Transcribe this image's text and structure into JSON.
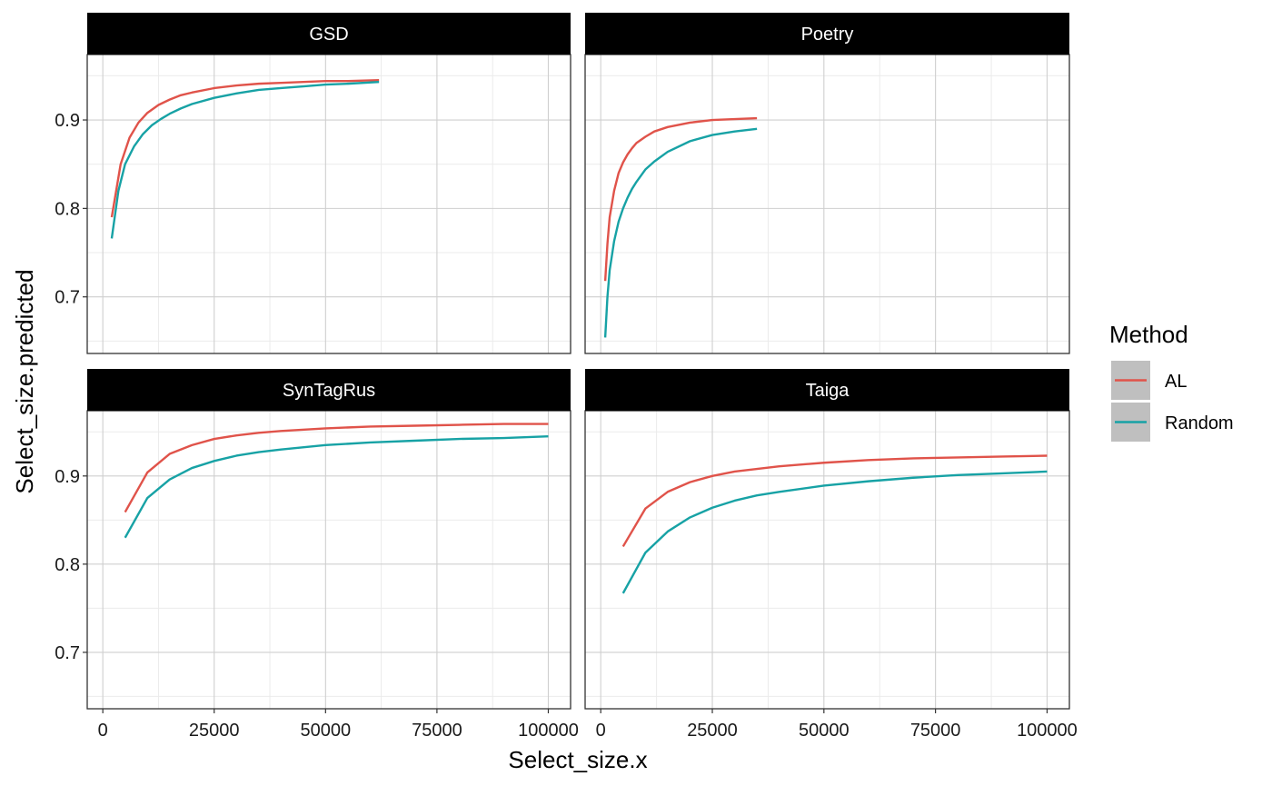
{
  "chart_data": {
    "type": "line",
    "xlabel": "Select_size.x",
    "ylabel": "Select_size.predicted",
    "xlim": [
      -3500,
      105000
    ],
    "ylim": [
      0.636,
      0.974
    ],
    "x_ticks": [
      0,
      25000,
      50000,
      75000,
      100000
    ],
    "x_tick_labels": [
      "0",
      "25000",
      "50000",
      "75000",
      "100000"
    ],
    "y_ticks": [
      0.7,
      0.8,
      0.9
    ],
    "y_tick_labels": [
      "0.7",
      "0.8",
      "0.9"
    ],
    "grid": true,
    "legend_placement": "right",
    "legend": {
      "title": "Method",
      "entries": [
        {
          "label": "AL",
          "color": "#E0534A"
        },
        {
          "label": "Random",
          "color": "#17A2A5"
        }
      ]
    },
    "facets": [
      {
        "title": "GSD",
        "series": [
          {
            "name": "AL",
            "x": [
              2000,
              4000,
              6000,
              8000,
              10000,
              12500,
              15000,
              17500,
              20000,
              25000,
              30000,
              35000,
              40000,
              45000,
              50000,
              55000,
              62000
            ],
            "y": [
              0.79,
              0.85,
              0.88,
              0.897,
              0.908,
              0.917,
              0.923,
              0.928,
              0.931,
              0.936,
              0.939,
              0.941,
              0.942,
              0.943,
              0.944,
              0.944,
              0.945
            ]
          },
          {
            "name": "Random",
            "x": [
              2000,
              3500,
              5000,
              7000,
              9000,
              11000,
              13000,
              15000,
              17500,
              20000,
              25000,
              30000,
              35000,
              40000,
              45000,
              50000,
              55000,
              62000
            ],
            "y": [
              0.766,
              0.82,
              0.85,
              0.87,
              0.884,
              0.894,
              0.901,
              0.907,
              0.913,
              0.918,
              0.925,
              0.93,
              0.934,
              0.936,
              0.938,
              0.94,
              0.941,
              0.943
            ]
          }
        ]
      },
      {
        "title": "Poetry",
        "series": [
          {
            "name": "AL",
            "x": [
              1000,
              1500,
              2000,
              3000,
              4000,
              5000,
              6000,
              7000,
              8000,
              10000,
              12000,
              15000,
              20000,
              25000,
              30000,
              35000
            ],
            "y": [
              0.718,
              0.76,
              0.79,
              0.82,
              0.84,
              0.852,
              0.861,
              0.868,
              0.874,
              0.881,
              0.887,
              0.892,
              0.897,
              0.9,
              0.901,
              0.902
            ]
          },
          {
            "name": "Random",
            "x": [
              1000,
              1500,
              2000,
              3000,
              4000,
              5000,
              6000,
              7000,
              8000,
              10000,
              12000,
              15000,
              20000,
              25000,
              30000,
              35000
            ],
            "y": [
              0.654,
              0.7,
              0.73,
              0.763,
              0.785,
              0.8,
              0.812,
              0.822,
              0.83,
              0.844,
              0.853,
              0.864,
              0.876,
              0.883,
              0.887,
              0.89
            ]
          }
        ]
      },
      {
        "title": "SynTagRus",
        "series": [
          {
            "name": "AL",
            "x": [
              5000,
              10000,
              15000,
              20000,
              25000,
              30000,
              35000,
              40000,
              50000,
              60000,
              70000,
              80000,
              90000,
              100000
            ],
            "y": [
              0.859,
              0.904,
              0.925,
              0.935,
              0.942,
              0.946,
              0.949,
              0.951,
              0.954,
              0.956,
              0.957,
              0.958,
              0.959,
              0.959
            ]
          },
          {
            "name": "Random",
            "x": [
              5000,
              10000,
              15000,
              20000,
              25000,
              30000,
              35000,
              40000,
              50000,
              60000,
              70000,
              80000,
              90000,
              100000
            ],
            "y": [
              0.83,
              0.875,
              0.896,
              0.909,
              0.917,
              0.923,
              0.927,
              0.93,
              0.935,
              0.938,
              0.94,
              0.942,
              0.943,
              0.945
            ]
          }
        ]
      },
      {
        "title": "Taiga",
        "series": [
          {
            "name": "AL",
            "x": [
              5000,
              10000,
              15000,
              20000,
              25000,
              30000,
              35000,
              40000,
              50000,
              60000,
              70000,
              80000,
              90000,
              100000
            ],
            "y": [
              0.82,
              0.863,
              0.882,
              0.893,
              0.9,
              0.905,
              0.908,
              0.911,
              0.915,
              0.918,
              0.92,
              0.921,
              0.922,
              0.923
            ]
          },
          {
            "name": "Random",
            "x": [
              5000,
              10000,
              15000,
              20000,
              25000,
              30000,
              35000,
              40000,
              50000,
              60000,
              70000,
              80000,
              90000,
              100000
            ],
            "y": [
              0.767,
              0.813,
              0.837,
              0.853,
              0.864,
              0.872,
              0.878,
              0.882,
              0.889,
              0.894,
              0.898,
              0.901,
              0.903,
              0.905
            ]
          }
        ]
      }
    ]
  }
}
